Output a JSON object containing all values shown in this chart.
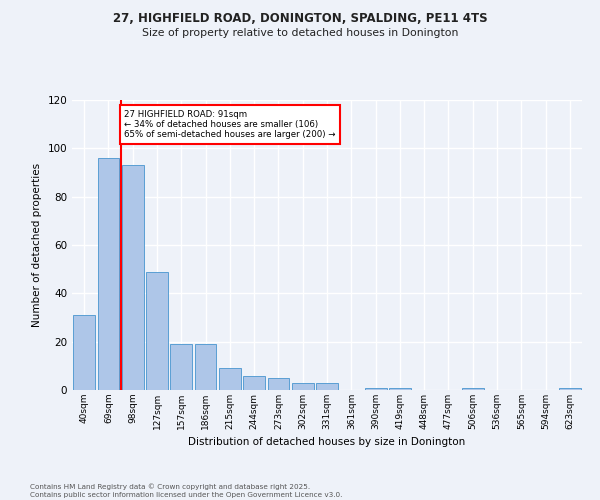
{
  "title_line1": "27, HIGHFIELD ROAD, DONINGTON, SPALDING, PE11 4TS",
  "title_line2": "Size of property relative to detached houses in Donington",
  "xlabel": "Distribution of detached houses by size in Donington",
  "ylabel": "Number of detached properties",
  "bar_labels": [
    "40sqm",
    "69sqm",
    "98sqm",
    "127sqm",
    "157sqm",
    "186sqm",
    "215sqm",
    "244sqm",
    "273sqm",
    "302sqm",
    "331sqm",
    "361sqm",
    "390sqm",
    "419sqm",
    "448sqm",
    "477sqm",
    "506sqm",
    "536sqm",
    "565sqm",
    "594sqm",
    "623sqm"
  ],
  "bar_values": [
    31,
    96,
    93,
    49,
    19,
    19,
    9,
    6,
    5,
    3,
    3,
    0,
    1,
    1,
    0,
    0,
    1,
    0,
    0,
    0,
    1
  ],
  "bar_color": "#aec6e8",
  "bar_edge_color": "#5a9fd4",
  "vline_x": 1.5,
  "vline_color": "red",
  "annotation_text": "27 HIGHFIELD ROAD: 91sqm\n← 34% of detached houses are smaller (106)\n65% of semi-detached houses are larger (200) →",
  "annotation_box_color": "white",
  "annotation_box_edge": "red",
  "ylim": [
    0,
    120
  ],
  "yticks": [
    0,
    20,
    40,
    60,
    80,
    100,
    120
  ],
  "background_color": "#eef2f9",
  "plot_bg_color": "#eef2f9",
  "grid_color": "white",
  "footer_line1": "Contains HM Land Registry data © Crown copyright and database right 2025.",
  "footer_line2": "Contains public sector information licensed under the Open Government Licence v3.0."
}
